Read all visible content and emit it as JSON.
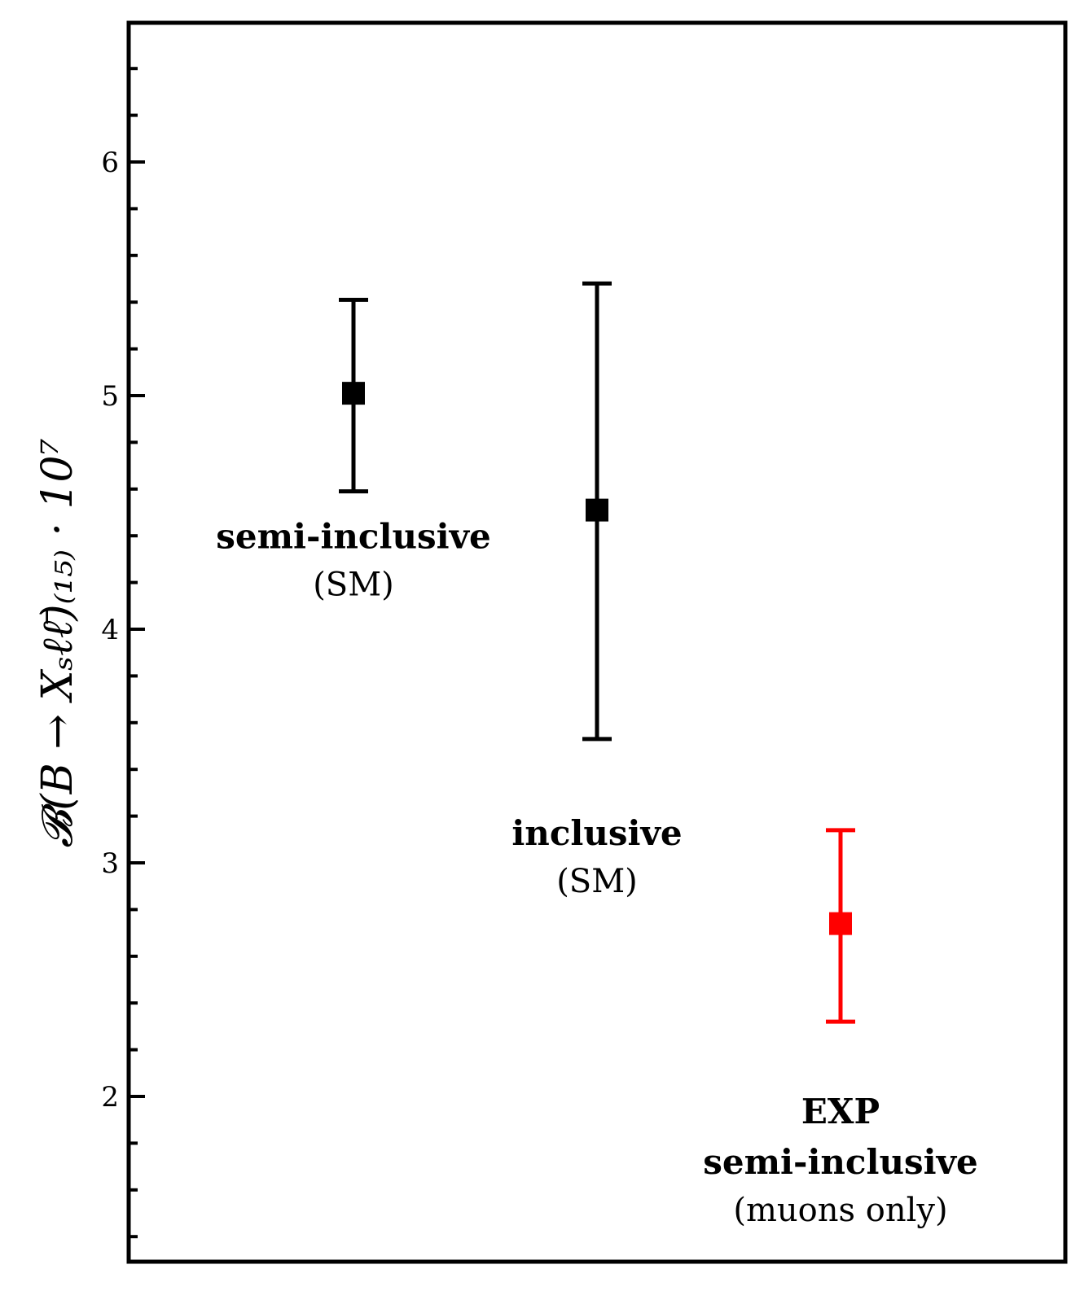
{
  "chart_data": {
    "type": "scatter",
    "ylabel": "𝓑(B → Xₛℓℓ̄)₍₁₅₎ · 10⁷",
    "ylim": [
      1.3,
      6.55
    ],
    "yticks": [
      2,
      3,
      4,
      5,
      6
    ],
    "ytick_labels": [
      "2",
      "3",
      "4",
      "5",
      "6"
    ],
    "minor_tick_step": 0.2,
    "xlim": [
      0,
      1
    ],
    "points": [
      {
        "name": "semi-inclusive (SM)",
        "x": 0.24,
        "y": 5.01,
        "yerr_low": 4.59,
        "yerr_high": 5.41,
        "color": "#000000",
        "label_lines": [
          {
            "text": "semi-inclusive",
            "bold": true
          },
          {
            "text": "(SM)",
            "bold": false
          }
        ]
      },
      {
        "name": "inclusive (SM)",
        "x": 0.5,
        "y": 4.51,
        "yerr_low": 3.53,
        "yerr_high": 5.48,
        "color": "#000000",
        "label_lines": [
          {
            "text": "inclusive",
            "bold": true
          },
          {
            "text": "(SM)",
            "bold": false
          }
        ]
      },
      {
        "name": "EXP semi-inclusive (muons only)",
        "x": 0.76,
        "y": 2.74,
        "yerr_low": 2.32,
        "yerr_high": 3.14,
        "color": "#ff0000",
        "label_lines": [
          {
            "text": "EXP",
            "bold": true
          },
          {
            "text": "semi-inclusive",
            "bold": true
          },
          {
            "text": "(muons only)",
            "bold": false
          }
        ]
      }
    ]
  }
}
